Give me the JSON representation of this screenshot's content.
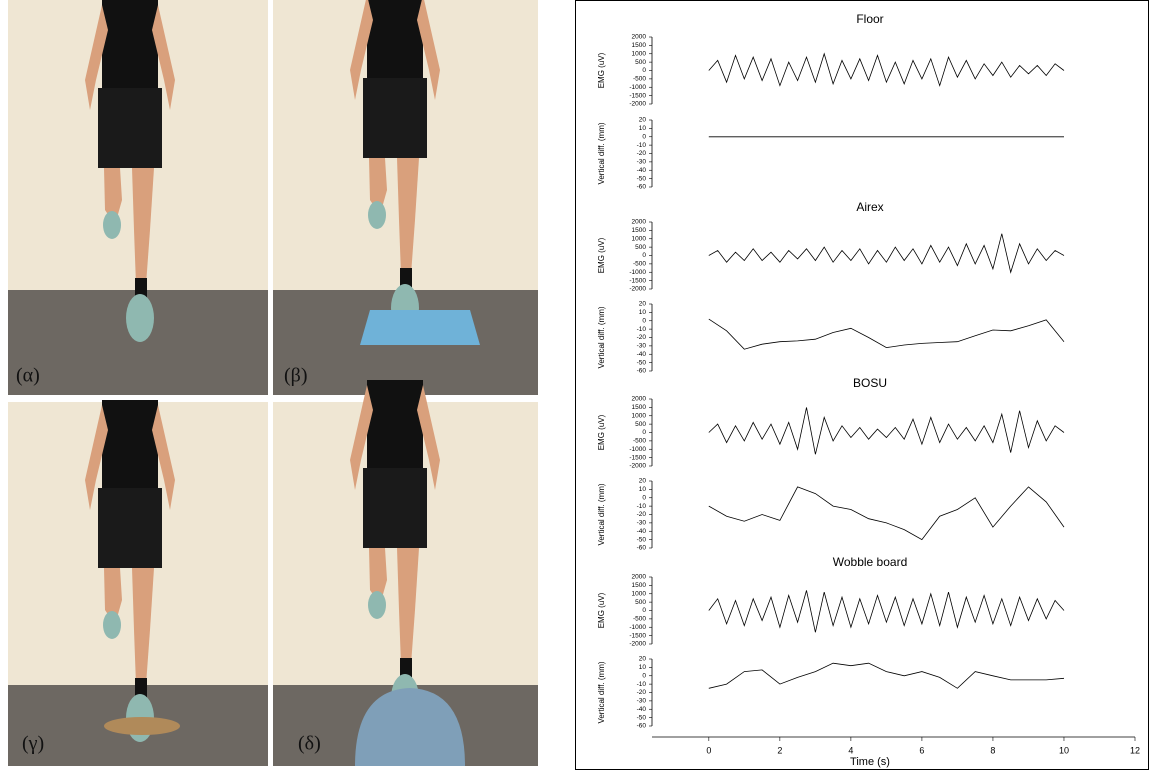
{
  "photos": [
    {
      "label": "(α)"
    },
    {
      "label": "(β)"
    },
    {
      "label": "(γ)"
    },
    {
      "label": "(δ)"
    }
  ],
  "chart_data": [
    {
      "type": "line",
      "title": "Floor",
      "ylabel": "EMG (uV)",
      "xlim": [
        -1.6,
        12
      ],
      "ylim": [
        -2000,
        2000
      ],
      "yticks": [
        2000,
        1500,
        1000,
        500,
        0,
        -500,
        -1000,
        -1500,
        -2000
      ],
      "color": "#000000",
      "x": [
        0,
        0.25,
        0.5,
        0.75,
        1,
        1.25,
        1.5,
        1.75,
        2,
        2.25,
        2.5,
        2.75,
        3,
        3.25,
        3.5,
        3.75,
        4,
        4.25,
        4.5,
        4.75,
        5,
        5.25,
        5.5,
        5.75,
        6,
        6.25,
        6.5,
        6.75,
        7,
        7.25,
        7.5,
        7.75,
        8,
        8.25,
        8.5,
        8.75,
        9,
        9.25,
        9.5,
        9.75,
        10
      ],
      "values": [
        0,
        600,
        -700,
        900,
        -500,
        800,
        -600,
        700,
        -900,
        500,
        -600,
        800,
        -700,
        1000,
        -800,
        600,
        -500,
        700,
        -600,
        900,
        -700,
        500,
        -800,
        600,
        -500,
        700,
        -900,
        800,
        -400,
        600,
        -500,
        400,
        -300,
        500,
        -400,
        300,
        -200,
        300,
        -300,
        400,
        0
      ]
    },
    {
      "type": "line",
      "ylabel": "Vertical diff. (mm)",
      "xlim": [
        -1.6,
        12
      ],
      "ylim": [
        -60,
        20
      ],
      "yticks": [
        20,
        10,
        0,
        -10,
        -20,
        -30,
        -40,
        -50,
        -60
      ],
      "color": "#000000",
      "x": [
        0,
        0.5,
        1,
        1.5,
        2,
        2.5,
        3,
        3.5,
        4,
        4.5,
        5,
        5.5,
        6,
        6.5,
        7,
        7.5,
        8,
        8.5,
        9,
        9.5,
        10
      ],
      "values": [
        0,
        0,
        0,
        0,
        0,
        0,
        0,
        0,
        0,
        0,
        0,
        0,
        0,
        0,
        0,
        0,
        0,
        0,
        0,
        0,
        0
      ]
    },
    {
      "type": "line",
      "title": "Airex",
      "ylabel": "EMG (uV)",
      "xlim": [
        -1.6,
        12
      ],
      "ylim": [
        -2000,
        2000
      ],
      "yticks": [
        2000,
        1500,
        1000,
        500,
        0,
        -500,
        -1000,
        -1500,
        -2000
      ],
      "color": "#000000",
      "x": [
        0,
        0.25,
        0.5,
        0.75,
        1,
        1.25,
        1.5,
        1.75,
        2,
        2.25,
        2.5,
        2.75,
        3,
        3.25,
        3.5,
        3.75,
        4,
        4.25,
        4.5,
        4.75,
        5,
        5.25,
        5.5,
        5.75,
        6,
        6.25,
        6.5,
        6.75,
        7,
        7.25,
        7.5,
        7.75,
        8,
        8.25,
        8.5,
        8.75,
        9,
        9.25,
        9.5,
        9.75,
        10
      ],
      "values": [
        0,
        300,
        -400,
        200,
        -300,
        400,
        -300,
        200,
        -400,
        300,
        -200,
        400,
        -300,
        500,
        -400,
        300,
        -300,
        400,
        -500,
        300,
        -400,
        500,
        -300,
        400,
        -500,
        600,
        -400,
        500,
        -600,
        700,
        -500,
        600,
        -800,
        1300,
        -1000,
        700,
        -500,
        400,
        -300,
        300,
        0
      ]
    },
    {
      "type": "line",
      "ylabel": "Vertical diff. (mm)",
      "xlim": [
        -1.6,
        12
      ],
      "ylim": [
        -60,
        20
      ],
      "yticks": [
        20,
        10,
        0,
        -10,
        -20,
        -30,
        -40,
        -50,
        -60
      ],
      "color": "#000000",
      "x": [
        0,
        0.5,
        1,
        1.5,
        2,
        2.5,
        3,
        3.5,
        4,
        4.5,
        5,
        5.5,
        6,
        6.5,
        7,
        7.5,
        8,
        8.5,
        9,
        9.5,
        10
      ],
      "values": [
        2,
        -12,
        -34,
        -28,
        -25,
        -24,
        -22,
        -14,
        -9,
        -20,
        -32,
        -29,
        -27,
        -26,
        -25,
        -18,
        -11,
        -12,
        -6,
        1,
        -25
      ]
    },
    {
      "type": "line",
      "title": "BOSU",
      "ylabel": "EMG (uV)",
      "xlim": [
        -1.6,
        12
      ],
      "ylim": [
        -2000,
        2000
      ],
      "yticks": [
        2000,
        1500,
        1000,
        500,
        0,
        -500,
        -1000,
        -1500,
        -2000
      ],
      "color": "#000000",
      "x": [
        0,
        0.25,
        0.5,
        0.75,
        1,
        1.25,
        1.5,
        1.75,
        2,
        2.25,
        2.5,
        2.75,
        3,
        3.25,
        3.5,
        3.75,
        4,
        4.25,
        4.5,
        4.75,
        5,
        5.25,
        5.5,
        5.75,
        6,
        6.25,
        6.5,
        6.75,
        7,
        7.25,
        7.5,
        7.75,
        8,
        8.25,
        8.5,
        8.75,
        9,
        9.25,
        9.5,
        9.75,
        10
      ],
      "values": [
        0,
        500,
        -600,
        400,
        -500,
        600,
        -400,
        500,
        -700,
        600,
        -1000,
        1500,
        -1300,
        900,
        -500,
        400,
        -300,
        300,
        -400,
        200,
        -300,
        300,
        -400,
        800,
        -700,
        900,
        -600,
        500,
        -400,
        300,
        -500,
        400,
        -600,
        1100,
        -1200,
        1300,
        -900,
        700,
        -500,
        400,
        0
      ]
    },
    {
      "type": "line",
      "ylabel": "Vertical diff. (mm)",
      "xlim": [
        -1.6,
        12
      ],
      "ylim": [
        -60,
        20
      ],
      "yticks": [
        20,
        10,
        0,
        -10,
        -20,
        -30,
        -40,
        -50,
        -60
      ],
      "color": "#000000",
      "x": [
        0,
        0.5,
        1,
        1.5,
        2,
        2.5,
        3,
        3.5,
        4,
        4.5,
        5,
        5.5,
        6,
        6.5,
        7,
        7.5,
        8,
        8.5,
        9,
        9.5,
        10
      ],
      "values": [
        -10,
        -22,
        -28,
        -20,
        -27,
        13,
        5,
        -10,
        -14,
        -25,
        -30,
        -38,
        -50,
        -22,
        -14,
        0,
        -35,
        -10,
        13,
        -5,
        -35
      ]
    },
    {
      "type": "line",
      "title": "Wobble board",
      "ylabel": "EMG (uV)",
      "xlim": [
        -1.6,
        12
      ],
      "ylim": [
        -2000,
        2000
      ],
      "yticks": [
        2000,
        1500,
        1000,
        500,
        0,
        -500,
        -1000,
        -1500,
        -2000
      ],
      "color": "#000000",
      "x": [
        0,
        0.25,
        0.5,
        0.75,
        1,
        1.25,
        1.5,
        1.75,
        2,
        2.25,
        2.5,
        2.75,
        3,
        3.25,
        3.5,
        3.75,
        4,
        4.25,
        4.5,
        4.75,
        5,
        5.25,
        5.5,
        5.75,
        6,
        6.25,
        6.5,
        6.75,
        7,
        7.25,
        7.5,
        7.75,
        8,
        8.25,
        8.5,
        8.75,
        9,
        9.25,
        9.5,
        9.75,
        10
      ],
      "values": [
        0,
        700,
        -800,
        600,
        -900,
        700,
        -600,
        800,
        -1000,
        900,
        -700,
        1200,
        -1300,
        1100,
        -900,
        800,
        -1000,
        700,
        -800,
        900,
        -700,
        800,
        -900,
        700,
        -800,
        1000,
        -900,
        1100,
        -1000,
        800,
        -700,
        900,
        -800,
        700,
        -900,
        800,
        -600,
        700,
        -500,
        600,
        0
      ]
    },
    {
      "type": "line",
      "ylabel": "Vertical diff. (mm)",
      "xlabel": "Time (s)",
      "xlim": [
        -1.6,
        12
      ],
      "xticks": [
        0,
        2,
        4,
        6,
        8,
        10,
        12
      ],
      "ylim": [
        -60,
        20
      ],
      "yticks": [
        20,
        10,
        0,
        -10,
        -20,
        -30,
        -40,
        -50,
        -60
      ],
      "color": "#000000",
      "x": [
        0,
        0.5,
        1,
        1.5,
        2,
        2.5,
        3,
        3.5,
        4,
        4.5,
        5,
        5.5,
        6,
        6.5,
        7,
        7.5,
        8,
        8.5,
        9,
        9.5,
        10
      ],
      "values": [
        -15,
        -10,
        5,
        7,
        -10,
        -2,
        5,
        15,
        12,
        15,
        5,
        0,
        5,
        -2,
        -15,
        5,
        0,
        -5,
        -5,
        -5,
        -3
      ]
    }
  ]
}
